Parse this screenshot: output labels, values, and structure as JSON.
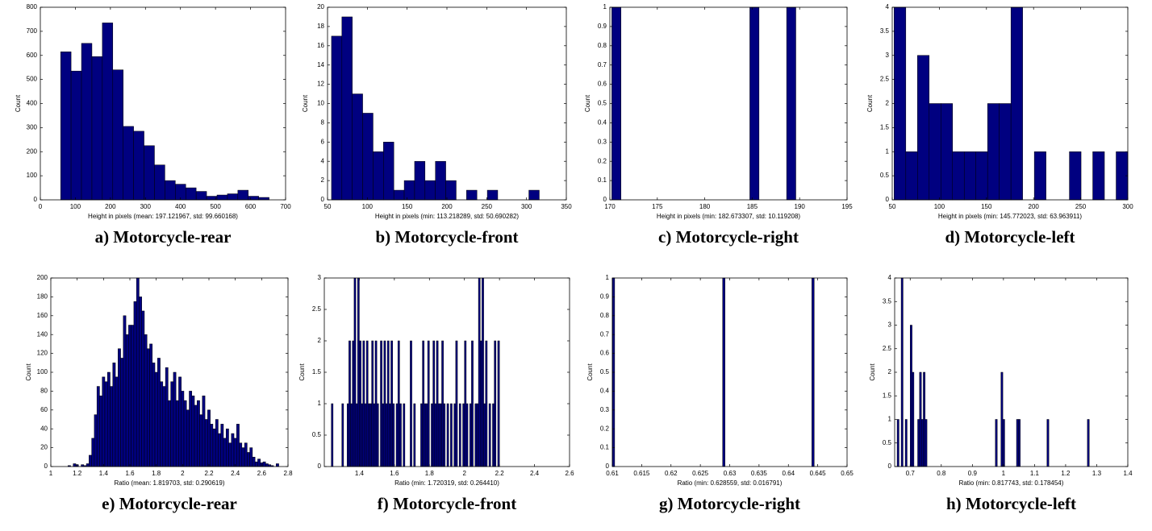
{
  "chart_data": [
    {
      "type": "histogram",
      "caption": "a) Motorcycle-rear",
      "xlabel": "Height in pixels (mean: 197.121967, std: 99.660168)",
      "ylabel": "Count",
      "color": "#000080",
      "bins": [
        58,
        87.75,
        117.5,
        147.25,
        177,
        206.75,
        236.5,
        266.25,
        296,
        325.75,
        355.5,
        385.25,
        415,
        444.75,
        474.5,
        504.25,
        534,
        563.75,
        593.5,
        623.25,
        653
      ],
      "values": [
        615,
        535,
        650,
        595,
        735,
        540,
        305,
        285,
        225,
        145,
        80,
        65,
        50,
        35,
        15,
        20,
        25,
        40,
        15,
        10
      ],
      "xlim": [
        0,
        700
      ],
      "xticks": [
        0,
        100,
        200,
        300,
        400,
        500,
        600,
        700
      ],
      "ylim": [
        0,
        800
      ],
      "yticks": [
        0,
        100,
        200,
        300,
        400,
        500,
        600,
        700,
        800
      ]
    },
    {
      "type": "histogram",
      "caption": "b) Motorcycle-front",
      "xlabel": "Height in pixels (min: 113.218289, std: 50.690282)",
      "ylabel": "Count",
      "color": "#000080",
      "bins": [
        55,
        68.05,
        81.1,
        94.15,
        107.2,
        120.25,
        133.3,
        146.35,
        159.4,
        172.45,
        185.5,
        198.55,
        211.6,
        224.65,
        237.7,
        250.75,
        263.8,
        276.85,
        289.9,
        302.95,
        316
      ],
      "values": [
        17,
        19,
        11,
        9,
        5,
        6,
        1,
        2,
        4,
        2,
        4,
        2,
        0,
        1,
        0,
        1,
        0,
        0,
        0,
        1
      ],
      "xlim": [
        50,
        350
      ],
      "xticks": [
        50,
        100,
        150,
        200,
        250,
        300,
        350
      ],
      "ylim": [
        0,
        20
      ],
      "yticks": [
        0,
        2,
        4,
        6,
        8,
        10,
        12,
        14,
        16,
        18,
        20
      ]
    },
    {
      "type": "histogram",
      "caption": "c) Motorcycle-right",
      "xlabel": "Height in pixels (min: 182.673307, std: 10.119208)",
      "ylabel": "Count",
      "color": "#000080",
      "bins": [
        170.2,
        171.17,
        172.14,
        173.11,
        174.08,
        175.05,
        176.02,
        176.99,
        177.96,
        178.93,
        179.9,
        180.87,
        181.84,
        182.81,
        183.78,
        184.75,
        185.72,
        186.69,
        187.66,
        188.63,
        189.6
      ],
      "values": [
        1,
        0,
        0,
        0,
        0,
        0,
        0,
        0,
        0,
        0,
        0,
        0,
        0,
        0,
        0,
        1,
        0,
        0,
        0,
        1
      ],
      "xlim": [
        170,
        195
      ],
      "xticks": [
        170,
        175,
        180,
        185,
        190,
        195
      ],
      "ylim": [
        0,
        1
      ],
      "yticks": [
        0,
        0.1,
        0.2,
        0.3,
        0.4,
        0.5,
        0.6,
        0.7,
        0.8,
        0.9,
        1
      ]
    },
    {
      "type": "histogram",
      "caption": "d) Motorcycle-left",
      "xlabel": "Height in pixels (min: 145.772023, std: 63.963911)",
      "ylabel": "Count",
      "color": "#000080",
      "bins": [
        52,
        64.4,
        76.8,
        89.2,
        101.6,
        114,
        126.4,
        138.8,
        151.2,
        163.6,
        176,
        188.4,
        200.8,
        213.2,
        225.6,
        238,
        250.4,
        262.8,
        275.2,
        287.6,
        300
      ],
      "values": [
        4,
        1,
        3,
        2,
        2,
        1,
        1,
        1,
        2,
        2,
        4,
        0,
        1,
        0,
        0,
        1,
        0,
        1,
        0,
        1
      ],
      "xlim": [
        50,
        300
      ],
      "xticks": [
        50,
        100,
        150,
        200,
        250,
        300
      ],
      "ylim": [
        0,
        4
      ],
      "yticks": [
        0,
        0.5,
        1,
        1.5,
        2,
        2.5,
        3,
        3.5,
        4
      ]
    },
    {
      "type": "histogram",
      "caption": "e) Motorcycle-rear",
      "xlabel": "Ratio (mean: 1.819703, std: 0.290619)",
      "ylabel": "Count",
      "color": "#000080",
      "bins": [
        1.13,
        1.15,
        1.17,
        1.19,
        1.21,
        1.23,
        1.25,
        1.27,
        1.29,
        1.31,
        1.33,
        1.35,
        1.37,
        1.39,
        1.41,
        1.43,
        1.45,
        1.47,
        1.49,
        1.51,
        1.53,
        1.55,
        1.57,
        1.59,
        1.61,
        1.63,
        1.65,
        1.67,
        1.69,
        1.71,
        1.73,
        1.75,
        1.77,
        1.79,
        1.81,
        1.83,
        1.85,
        1.87,
        1.89,
        1.91,
        1.93,
        1.95,
        1.97,
        1.99,
        2.01,
        2.03,
        2.05,
        2.07,
        2.09,
        2.11,
        2.13,
        2.15,
        2.17,
        2.19,
        2.21,
        2.23,
        2.25,
        2.27,
        2.29,
        2.31,
        2.33,
        2.35,
        2.37,
        2.39,
        2.41,
        2.43,
        2.45,
        2.47,
        2.49,
        2.51,
        2.53,
        2.55,
        2.57,
        2.59,
        2.61,
        2.63,
        2.65,
        2.67,
        2.69,
        2.71,
        2.73
      ],
      "values": [
        1,
        0,
        3,
        2,
        0,
        2,
        1,
        3,
        12,
        30,
        55,
        85,
        75,
        95,
        90,
        100,
        85,
        110,
        95,
        125,
        115,
        160,
        140,
        150,
        150,
        175,
        200,
        180,
        165,
        140,
        125,
        130,
        110,
        100,
        115,
        90,
        85,
        105,
        70,
        90,
        100,
        70,
        95,
        80,
        70,
        60,
        80,
        75,
        65,
        70,
        55,
        75,
        50,
        60,
        45,
        40,
        50,
        35,
        45,
        30,
        40,
        25,
        35,
        30,
        45,
        25,
        20,
        25,
        15,
        20,
        10,
        5,
        8,
        4,
        5,
        3,
        2,
        1,
        0,
        3
      ],
      "xlim": [
        1,
        2.8
      ],
      "xticks": [
        1,
        1.2,
        1.4,
        1.6,
        1.8,
        2,
        2.2,
        2.4,
        2.6,
        2.8
      ],
      "ylim": [
        0,
        200
      ],
      "yticks": [
        0,
        20,
        40,
        60,
        80,
        100,
        120,
        140,
        160,
        180,
        200
      ]
    },
    {
      "type": "histogram",
      "caption": "f) Motorcycle-front",
      "xlabel": "Ratio (min: 1.720319, std: 0.264410)",
      "ylabel": "Count",
      "color": "#000080",
      "bins": [
        1.24,
        1.25,
        1.26,
        1.27,
        1.28,
        1.29,
        1.3,
        1.31,
        1.32,
        1.33,
        1.34,
        1.35,
        1.36,
        1.37,
        1.38,
        1.39,
        1.4,
        1.41,
        1.42,
        1.43,
        1.44,
        1.45,
        1.46,
        1.47,
        1.48,
        1.49,
        1.5,
        1.51,
        1.52,
        1.53,
        1.54,
        1.55,
        1.56,
        1.57,
        1.58,
        1.59,
        1.6,
        1.61,
        1.62,
        1.63,
        1.64,
        1.65,
        1.66,
        1.67,
        1.68,
        1.69,
        1.7,
        1.71,
        1.72,
        1.73,
        1.74,
        1.75,
        1.76,
        1.77,
        1.78,
        1.79,
        1.8,
        1.81,
        1.82,
        1.83,
        1.84,
        1.85,
        1.86,
        1.87,
        1.88,
        1.89,
        1.9,
        1.91,
        1.92,
        1.93,
        1.94,
        1.95,
        1.96,
        1.97,
        1.98,
        1.99,
        2,
        2.01,
        2.02,
        2.03,
        2.04,
        2.05,
        2.06,
        2.07,
        2.08,
        2.09,
        2.1,
        2.11,
        2.12,
        2.13,
        2.14,
        2.15,
        2.16,
        2.17,
        2.18,
        2.19,
        2.2
      ],
      "values": [
        1,
        0,
        0,
        0,
        0,
        0,
        1,
        0,
        0,
        1,
        2,
        1,
        2,
        3,
        1,
        3,
        2,
        1,
        2,
        1,
        2,
        1,
        1,
        2,
        1,
        2,
        1,
        0,
        2,
        1,
        2,
        1,
        2,
        1,
        2,
        1,
        0,
        1,
        2,
        1,
        0,
        1,
        0,
        0,
        0,
        2,
        0,
        1,
        0,
        0,
        0,
        1,
        2,
        1,
        1,
        2,
        0,
        1,
        2,
        1,
        2,
        1,
        1,
        2,
        1,
        0,
        1,
        0,
        1,
        0,
        1,
        2,
        0,
        1,
        0,
        1,
        2,
        1,
        0,
        1,
        2,
        0,
        1,
        1,
        3,
        2,
        3,
        1,
        2,
        0,
        1,
        0,
        1,
        2,
        0,
        2
      ],
      "xlim": [
        1.2,
        2.6
      ],
      "xticks": [
        1.4,
        1.6,
        1.8,
        2,
        2.2,
        2.4,
        2.6
      ],
      "ylim": [
        0,
        3
      ],
      "yticks": [
        0,
        0.5,
        1,
        1.5,
        2,
        2.5,
        3
      ]
    },
    {
      "type": "histogram",
      "caption": "g) Motorcycle-right",
      "xlabel": "Ratio (min: 0.628559, std: 0.016791)",
      "ylabel": "Count",
      "color": "#000080",
      "bins": [
        0.61,
        0.6104,
        0.6288,
        0.6292,
        0.644,
        0.6444
      ],
      "values": [
        1,
        0,
        1,
        0,
        1
      ],
      "xlim": [
        0.61,
        0.65
      ],
      "xticks": [
        0.61,
        0.615,
        0.62,
        0.625,
        0.63,
        0.635,
        0.64,
        0.645,
        0.65
      ],
      "ylim": [
        0,
        1
      ],
      "yticks": [
        0,
        0.1,
        0.2,
        0.3,
        0.4,
        0.5,
        0.6,
        0.7,
        0.8,
        0.9,
        1
      ]
    },
    {
      "type": "histogram",
      "caption": "h) Motorcycle-left",
      "xlabel": "Ratio (min: 0.817743, std: 0.178454)",
      "ylabel": "Count",
      "color": "#000080",
      "bins": [
        0.658,
        0.664,
        0.671,
        0.677,
        0.684,
        0.69,
        0.7,
        0.706,
        0.712,
        0.724,
        0.73,
        0.736,
        0.742,
        0.748,
        0.754,
        0.974,
        0.98,
        0.992,
        0.998,
        1.004,
        1.042,
        1.048,
        1.054,
        1.14,
        1.146,
        1.27,
        1.276
      ],
      "values": [
        1,
        0,
        4,
        0,
        1,
        0,
        3,
        2,
        0,
        1,
        2,
        1,
        2,
        1,
        0,
        1,
        0,
        2,
        1,
        0,
        1,
        1,
        0,
        1,
        0,
        1
      ],
      "xlim": [
        0.65,
        1.4
      ],
      "xticks": [
        0.7,
        0.8,
        0.9,
        1,
        1.1,
        1.2,
        1.3,
        1.4
      ],
      "ylim": [
        0,
        4
      ],
      "yticks": [
        0,
        0.5,
        1,
        1.5,
        2,
        2.5,
        3,
        3.5,
        4
      ]
    }
  ]
}
